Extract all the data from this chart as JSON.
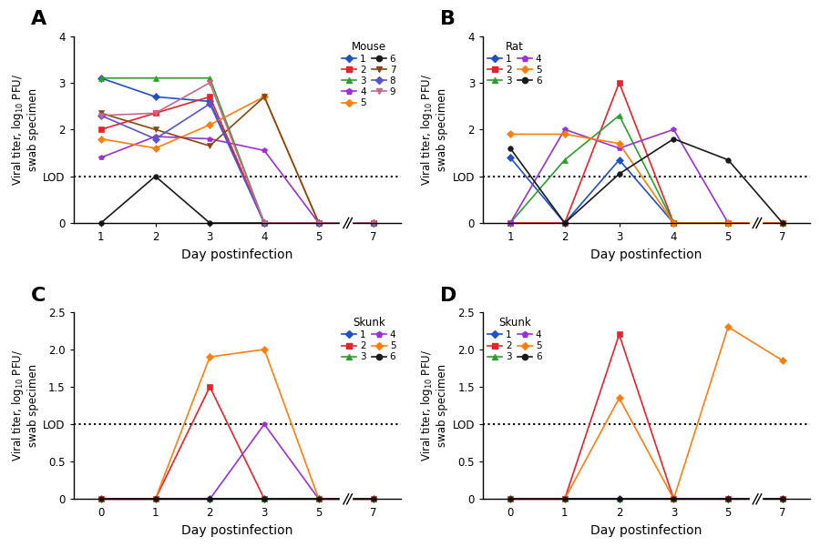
{
  "panel_A": {
    "title": "A",
    "xlabel": "Day postinfection",
    "ylabel_parts": [
      "Viral titer, log",
      "10",
      " PFU/\nswab specimen"
    ],
    "ylim": [
      0,
      4
    ],
    "yticks": [
      0,
      1,
      2,
      3,
      4
    ],
    "ytick_labels": [
      "0",
      "LOD",
      "2",
      "3",
      "4"
    ],
    "lod": 1,
    "lod_label": "LOD",
    "xtick_positions": [
      1,
      2,
      3,
      4,
      5,
      7
    ],
    "xtick_labels": [
      "1",
      "2",
      "3",
      "4",
      "5",
      "7"
    ],
    "legend_title": "Mouse",
    "legend_loc": "upper right",
    "legend_cols": 2,
    "legend_col_split": 5,
    "series": [
      {
        "label": "1",
        "color": "#1f50c8",
        "marker": "D",
        "x": [
          1,
          2,
          3,
          4,
          5,
          7
        ],
        "y": [
          3.1,
          2.7,
          2.6,
          0,
          0,
          0
        ]
      },
      {
        "label": "2",
        "color": "#e8232a",
        "marker": "s",
        "x": [
          1,
          2,
          3,
          4,
          5,
          7
        ],
        "y": [
          2.0,
          2.35,
          2.7,
          0,
          0,
          0
        ]
      },
      {
        "label": "3",
        "color": "#2ca02c",
        "marker": "^",
        "x": [
          1,
          2,
          3,
          4,
          5,
          7
        ],
        "y": [
          3.1,
          3.1,
          3.1,
          0,
          0,
          0
        ]
      },
      {
        "label": "4",
        "color": "#9b30d9",
        "marker": "p",
        "x": [
          1,
          2,
          3,
          4,
          5,
          7
        ],
        "y": [
          1.4,
          1.85,
          1.8,
          1.55,
          0,
          0
        ]
      },
      {
        "label": "5",
        "color": "#ff7f0e",
        "marker": "D",
        "x": [
          1,
          2,
          3,
          4,
          5,
          7
        ],
        "y": [
          1.8,
          1.6,
          2.1,
          2.7,
          0,
          0
        ]
      },
      {
        "label": "6",
        "color": "#1a1a1a",
        "marker": "o",
        "x": [
          1,
          2,
          3,
          4,
          5,
          7
        ],
        "y": [
          0,
          1.0,
          0,
          0,
          0,
          0
        ]
      },
      {
        "label": "7",
        "color": "#8b4513",
        "marker": "v",
        "x": [
          1,
          2,
          3,
          4,
          5,
          7
        ],
        "y": [
          2.35,
          2.0,
          1.65,
          2.7,
          0,
          0
        ]
      },
      {
        "label": "8",
        "color": "#5555cc",
        "marker": "D",
        "x": [
          1,
          2,
          3,
          4,
          5,
          7
        ],
        "y": [
          2.3,
          1.8,
          2.55,
          0,
          0,
          0
        ]
      },
      {
        "label": "9",
        "color": "#cc6688",
        "marker": "v",
        "x": [
          1,
          2,
          3,
          4,
          5,
          7
        ],
        "y": [
          2.3,
          2.35,
          3.0,
          0,
          0,
          0
        ]
      }
    ]
  },
  "panel_B": {
    "title": "B",
    "xlabel": "Day postinfection",
    "ylabel_parts": [
      "Viral titer, log",
      "10",
      " PFU/\nswab specimen"
    ],
    "ylim": [
      0,
      4
    ],
    "yticks": [
      0,
      1,
      2,
      3,
      4
    ],
    "ytick_labels": [
      "0",
      "LOD",
      "2",
      "3",
      "4"
    ],
    "lod": 1,
    "lod_label": "LOD",
    "xtick_positions": [
      1,
      2,
      3,
      4,
      5,
      7
    ],
    "xtick_labels": [
      "1",
      "2",
      "3",
      "4",
      "5",
      "7"
    ],
    "legend_title": "Rat",
    "legend_loc": "upper left",
    "legend_cols": 2,
    "legend_col_split": 3,
    "series": [
      {
        "label": "1",
        "color": "#1f50c8",
        "marker": "D",
        "x": [
          1,
          2,
          3,
          4,
          5,
          7
        ],
        "y": [
          1.4,
          0,
          1.35,
          0,
          0,
          0
        ]
      },
      {
        "label": "2",
        "color": "#e8232a",
        "marker": "s",
        "x": [
          1,
          2,
          3,
          4,
          5,
          7
        ],
        "y": [
          0,
          0,
          3.0,
          0,
          0,
          0
        ]
      },
      {
        "label": "3",
        "color": "#2ca02c",
        "marker": "^",
        "x": [
          1,
          2,
          3,
          4,
          5,
          7
        ],
        "y": [
          0,
          1.35,
          2.3,
          0,
          0,
          0
        ]
      },
      {
        "label": "4",
        "color": "#9b30d9",
        "marker": "p",
        "x": [
          1,
          2,
          3,
          4,
          5,
          7
        ],
        "y": [
          0,
          2.0,
          1.6,
          2.0,
          0,
          0
        ]
      },
      {
        "label": "5",
        "color": "#ff7f0e",
        "marker": "D",
        "x": [
          1,
          2,
          3,
          4,
          5,
          7
        ],
        "y": [
          1.9,
          1.9,
          1.7,
          0,
          0,
          0
        ]
      },
      {
        "label": "6",
        "color": "#1a1a1a",
        "marker": "o",
        "x": [
          1,
          2,
          3,
          4,
          5,
          7
        ],
        "y": [
          1.6,
          0,
          1.05,
          1.8,
          1.35,
          0
        ]
      }
    ]
  },
  "panel_C": {
    "title": "C",
    "xlabel": "Day postinfection",
    "ylabel_parts": [
      "Viral titer, log",
      "10",
      " PFU/\nswab specimen"
    ],
    "ylim": [
      0,
      2.5
    ],
    "yticks": [
      0,
      0.5,
      1.0,
      1.5,
      2.0,
      2.5
    ],
    "ytick_labels": [
      "0",
      "0.5",
      "LOD",
      "1.5",
      "2.0",
      "2.5"
    ],
    "lod": 1.0,
    "lod_label": "LOD",
    "xtick_positions": [
      0,
      1,
      2,
      3,
      5,
      7
    ],
    "xtick_labels": [
      "0",
      "1",
      "2",
      "3",
      "5",
      "7"
    ],
    "legend_title": "Skunk",
    "legend_loc": "upper right",
    "legend_cols": 2,
    "legend_col_split": 3,
    "series": [
      {
        "label": "1",
        "color": "#1f50c8",
        "marker": "D",
        "x": [
          0,
          1,
          2,
          3,
          5,
          7
        ],
        "y": [
          0,
          0,
          0,
          0,
          0,
          0
        ]
      },
      {
        "label": "2",
        "color": "#e8232a",
        "marker": "s",
        "x": [
          0,
          1,
          2,
          3,
          5,
          7
        ],
        "y": [
          0,
          0,
          1.5,
          0,
          0,
          0
        ]
      },
      {
        "label": "3",
        "color": "#2ca02c",
        "marker": "^",
        "x": [
          0,
          1,
          2,
          3,
          5,
          7
        ],
        "y": [
          0,
          0,
          0,
          0,
          0,
          0
        ]
      },
      {
        "label": "4",
        "color": "#9b30d9",
        "marker": "p",
        "x": [
          0,
          1,
          2,
          3,
          5,
          7
        ],
        "y": [
          0,
          0,
          0,
          1.0,
          0,
          0
        ]
      },
      {
        "label": "5",
        "color": "#ff7f0e",
        "marker": "D",
        "x": [
          0,
          1,
          2,
          3,
          5,
          7
        ],
        "y": [
          0,
          0,
          1.9,
          2.0,
          0,
          0
        ]
      },
      {
        "label": "6",
        "color": "#1a1a1a",
        "marker": "o",
        "x": [
          0,
          1,
          2,
          3,
          5,
          7
        ],
        "y": [
          0,
          0,
          0,
          0,
          0,
          0
        ]
      }
    ]
  },
  "panel_D": {
    "title": "D",
    "xlabel": "Day postinfection",
    "ylabel_parts": [
      "Viral titer, log",
      "10",
      " PFU/\nswab specimen"
    ],
    "ylim": [
      0,
      2.5
    ],
    "yticks": [
      0,
      0.5,
      1.0,
      1.5,
      2.0,
      2.5
    ],
    "ytick_labels": [
      "0",
      "0.5",
      "LOD",
      "1.5",
      "2.0",
      "2.5"
    ],
    "lod": 1.0,
    "lod_label": "LOD",
    "xtick_positions": [
      0,
      1,
      2,
      3,
      5,
      7
    ],
    "xtick_labels": [
      "0",
      "1",
      "2",
      "3",
      "5",
      "7"
    ],
    "legend_title": "Skunk",
    "legend_loc": "upper left",
    "legend_cols": 2,
    "legend_col_split": 3,
    "series": [
      {
        "label": "1",
        "color": "#1f50c8",
        "marker": "D",
        "x": [
          0,
          1,
          2,
          3,
          5,
          7
        ],
        "y": [
          0,
          0,
          0,
          0,
          0,
          0
        ]
      },
      {
        "label": "2",
        "color": "#e8232a",
        "marker": "s",
        "x": [
          0,
          1,
          2,
          3,
          5,
          7
        ],
        "y": [
          0,
          0,
          2.2,
          0,
          0,
          0
        ]
      },
      {
        "label": "3",
        "color": "#2ca02c",
        "marker": "^",
        "x": [
          0,
          1,
          2,
          3,
          5,
          7
        ],
        "y": [
          0,
          0,
          0,
          0,
          0,
          0
        ]
      },
      {
        "label": "4",
        "color": "#9b30d9",
        "marker": "p",
        "x": [
          0,
          1,
          2,
          3,
          5,
          7
        ],
        "y": [
          0,
          0,
          0,
          0,
          0,
          0
        ]
      },
      {
        "label": "5",
        "color": "#ff7f0e",
        "marker": "D",
        "x": [
          0,
          1,
          2,
          3,
          5,
          7
        ],
        "y": [
          0,
          0,
          1.35,
          0,
          2.3,
          1.85
        ]
      },
      {
        "label": "6",
        "color": "#1a1a1a",
        "marker": "o",
        "x": [
          0,
          1,
          2,
          3,
          5,
          7
        ],
        "y": [
          0,
          0,
          0,
          0,
          0,
          0
        ]
      }
    ]
  }
}
